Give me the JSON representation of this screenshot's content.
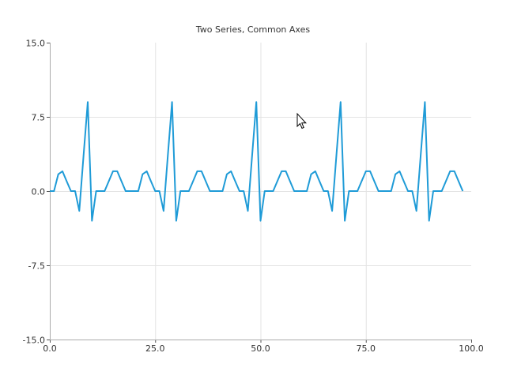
{
  "chart_data": {
    "type": "line",
    "title": "Two Series, Common Axes",
    "xlabel": "",
    "ylabel": "",
    "xlim": [
      0,
      100
    ],
    "ylim": [
      -15,
      15
    ],
    "x_ticks": [
      0,
      25,
      50,
      75,
      100
    ],
    "x_tick_labels": [
      "0.0",
      "25.0",
      "50.0",
      "75.0",
      "100.0"
    ],
    "y_ticks": [
      -15,
      -7.5,
      0,
      7.5,
      15
    ],
    "y_tick_labels": [
      "-15.0",
      "-7.5",
      "0.0",
      "7.5",
      "15.0"
    ],
    "grid": true,
    "legend": "none",
    "series": [
      {
        "color": "#1f9bd7",
        "x": [
          0,
          1,
          2,
          3,
          4,
          5,
          6,
          7,
          8,
          9,
          10,
          11,
          12,
          13,
          14,
          15,
          16,
          17,
          18,
          19,
          20,
          21,
          22,
          23,
          24,
          25,
          26,
          27,
          28,
          29,
          30,
          31,
          32,
          33,
          34,
          35,
          36,
          37,
          38,
          39,
          40,
          41,
          42,
          43,
          44,
          45,
          46,
          47,
          48,
          49,
          50,
          51,
          52,
          53,
          54,
          55,
          56,
          57,
          58,
          59,
          60,
          61,
          62,
          63,
          64,
          65,
          66,
          67,
          68,
          69,
          70,
          71,
          72,
          73,
          74,
          75,
          76,
          77,
          78,
          79,
          80,
          81,
          82,
          83,
          84,
          85,
          86,
          87,
          88,
          89,
          90,
          91,
          92,
          93,
          94,
          95,
          96,
          97,
          98
        ],
        "values": [
          0,
          0,
          1.7,
          2,
          1,
          0,
          0,
          -2,
          3.5,
          9,
          -3,
          0,
          0,
          0,
          1,
          2,
          2,
          1,
          0,
          0,
          0,
          0,
          1.7,
          2,
          1,
          0,
          0,
          -2,
          3.5,
          9,
          -3,
          0,
          0,
          0,
          1,
          2,
          2,
          1,
          0,
          0,
          0,
          0,
          1.7,
          2,
          1,
          0,
          0,
          -2,
          3.5,
          9,
          -3,
          0,
          0,
          0,
          1,
          2,
          2,
          1,
          0,
          0,
          0,
          0,
          1.7,
          2,
          1,
          0,
          0,
          -2,
          3.5,
          9,
          -3,
          0,
          0,
          0,
          1,
          2,
          2,
          1,
          0,
          0,
          0,
          0,
          1.7,
          2,
          1,
          0,
          0,
          -2,
          3.5,
          9,
          -3,
          0,
          0,
          0,
          1,
          2,
          2,
          1,
          0
        ]
      }
    ]
  }
}
